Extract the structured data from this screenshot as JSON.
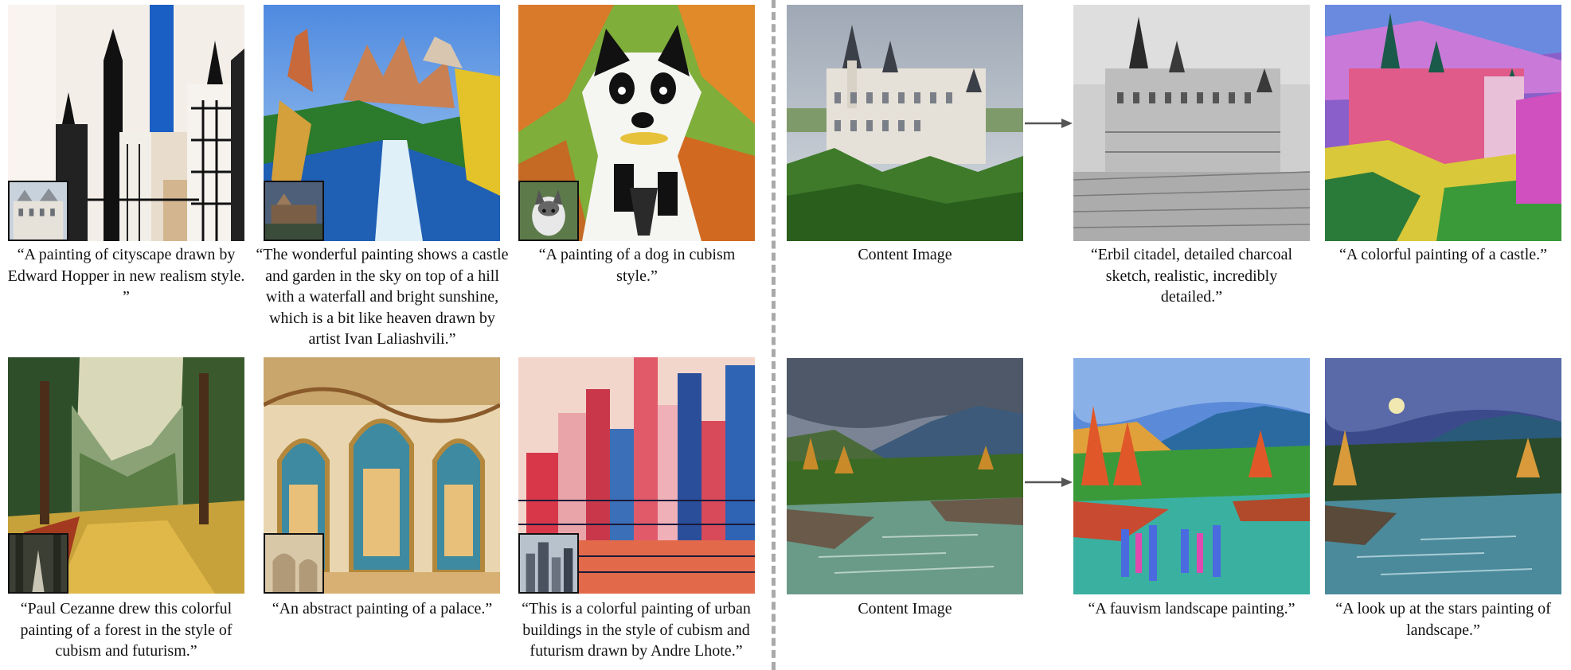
{
  "figure": {
    "left": [
      {
        "id": "cityscape",
        "caption": "“A painting of cityscape drawn by Edward Hopper in new realism style. ”"
      },
      {
        "id": "heaven-castle",
        "caption": "“The wonderful painting shows a castle and garden in the sky on top of a hill with a waterfall and bright sunshine, which is a bit like heaven drawn by artist Ivan Laliashvili.”"
      },
      {
        "id": "cubism-dog",
        "caption": "“A painting of a dog in cubism style.”"
      },
      {
        "id": "cezanne-forest",
        "caption": "“Paul Cezanne drew this colorful painting of a forest in the style of cubism and futurism.”"
      },
      {
        "id": "palace",
        "caption": "“An abstract painting of a palace.”"
      },
      {
        "id": "urban-buildings",
        "caption": "“This is a colorful painting of urban buildings in the style of cubism and futurism drawn by Andre Lhote.”"
      }
    ],
    "right": {
      "content_label": "Content Image",
      "castle_row": [
        {
          "id": "charcoal",
          "caption": "“Erbil citadel, detailed charcoal sketch, realistic, incredibly detailed.”"
        },
        {
          "id": "colorful-castle",
          "caption": "“A colorful painting of a castle.”"
        }
      ],
      "river_row": [
        {
          "id": "fauvism",
          "caption": "“A fauvism landscape painting.”"
        },
        {
          "id": "stars",
          "caption": "“A look up at the stars painting of landscape.”"
        }
      ]
    }
  }
}
